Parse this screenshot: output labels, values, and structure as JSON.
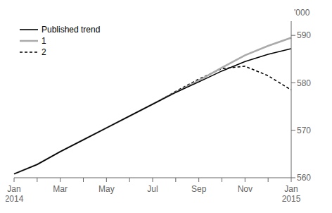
{
  "chart_data": {
    "type": "line",
    "ylabel": "'000",
    "categories": [
      "Jan\n2014",
      null,
      "Mar",
      null,
      "May",
      null,
      "Jul",
      null,
      "Sep",
      null,
      "Nov",
      null,
      "Jan\n2015"
    ],
    "series": [
      {
        "name": "Published trend",
        "color": "#000000",
        "line_style": "solid",
        "values": [
          560.8,
          562.8,
          565.5,
          568.0,
          570.5,
          573.0,
          575.5,
          578.0,
          580.2,
          582.5,
          584.5,
          586.0,
          587.2
        ]
      },
      {
        "name": "1",
        "color": "#aaaaaa",
        "line_style": "solid",
        "values": [
          560.8,
          562.8,
          565.5,
          568.0,
          570.5,
          573.0,
          575.5,
          578.0,
          580.5,
          583.2,
          585.8,
          587.8,
          589.5
        ]
      },
      {
        "name": "2",
        "color": "#000000",
        "line_style": "dashed",
        "values": [
          null,
          null,
          null,
          null,
          null,
          null,
          575.5,
          578.2,
          580.8,
          583.0,
          583.5,
          581.5,
          578.5
        ]
      }
    ],
    "ylim": [
      560,
      593
    ],
    "yticks": [
      560,
      570,
      580,
      590
    ],
    "grid": false,
    "legend": "upper left"
  }
}
